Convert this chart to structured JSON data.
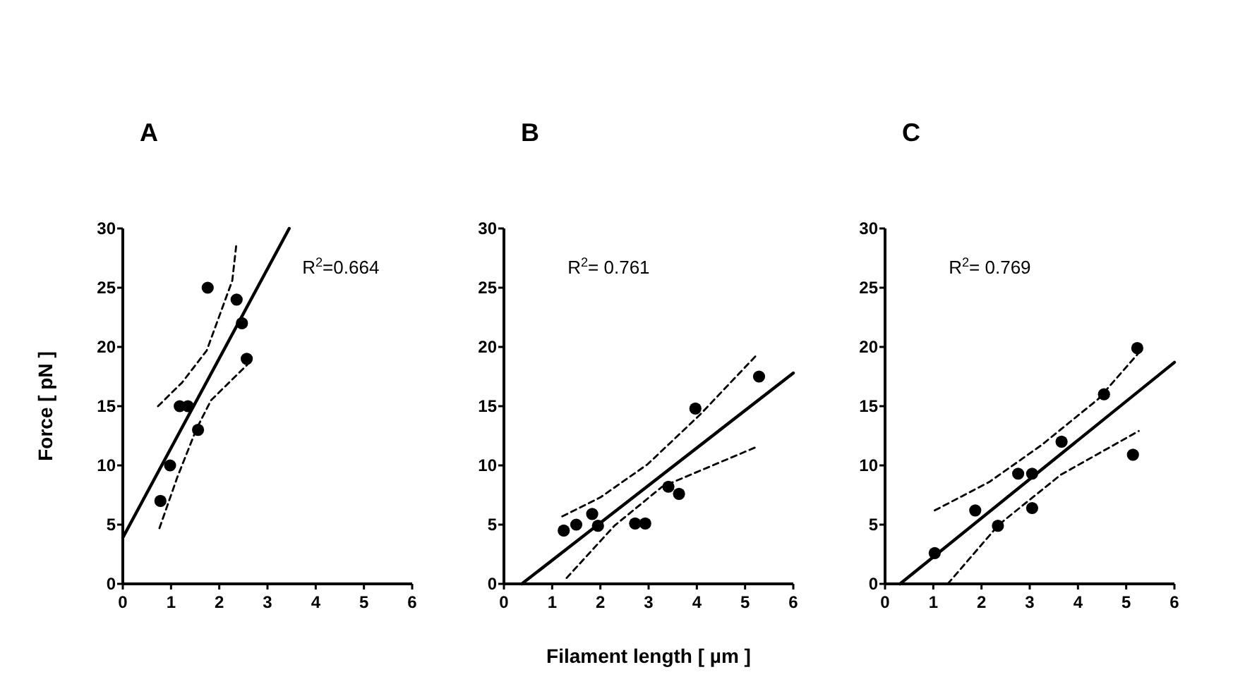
{
  "chart_data": [
    {
      "type": "scatter",
      "title": "A",
      "ylabel": "Force [ pN ]",
      "xlim": [
        0,
        6
      ],
      "ylim": [
        0,
        30
      ],
      "xticks": [
        0,
        1,
        2,
        3,
        4,
        5,
        6
      ],
      "yticks": [
        0,
        5,
        10,
        15,
        20,
        25,
        30
      ],
      "grid": false,
      "marker": "circle",
      "annotations": [
        "R$^{2}$=0.664"
      ],
      "series": [
        {
          "color": "#000000",
          "x": [
            0.78,
            0.98,
            1.18,
            1.35,
            1.56,
            1.76,
            2.36,
            2.47,
            2.57
          ],
          "values": [
            7,
            10,
            15,
            15,
            13,
            25,
            24,
            22,
            19
          ]
        },
        {
          "type": "line",
          "color": "#000000",
          "line_style": "solid",
          "marker": "none",
          "x": [
            0,
            3.45
          ],
          "values": [
            3.9,
            30
          ]
        },
        {
          "type": "line",
          "color": "#000000",
          "line_style": "dashed",
          "marker": "none",
          "x": [
            0.73,
            1.23,
            1.74,
            2.27,
            2.35
          ],
          "values": [
            15,
            17,
            19.7,
            25.6,
            28.5
          ]
        },
        {
          "type": "line",
          "color": "#000000",
          "line_style": "dashed",
          "marker": "none",
          "x": [
            0.76,
            1.13,
            1.53,
            1.83,
            2.58
          ],
          "values": [
            4.7,
            9,
            13.1,
            15.5,
            18.5
          ]
        }
      ]
    },
    {
      "type": "scatter",
      "title": "B",
      "xlabel": "Filament length [ µm ]",
      "xlim": [
        0,
        6
      ],
      "ylim": [
        0,
        30
      ],
      "xticks": [
        0,
        1,
        2,
        3,
        4,
        5,
        6
      ],
      "yticks": [
        0,
        5,
        10,
        15,
        20,
        25,
        30
      ],
      "grid": false,
      "marker": "circle",
      "annotations": [
        "R$^{2}$= 0.761"
      ],
      "series": [
        {
          "color": "#000000",
          "x": [
            1.24,
            1.5,
            1.83,
            1.95,
            2.72,
            2.93,
            3.41,
            3.63,
            3.97,
            5.29
          ],
          "values": [
            4.5,
            5,
            5.9,
            4.9,
            5.1,
            5.1,
            8.2,
            7.6,
            14.8,
            17.5
          ]
        },
        {
          "type": "line",
          "color": "#000000",
          "line_style": "solid",
          "marker": "none",
          "x": [
            0.37,
            6
          ],
          "values": [
            0,
            17.8
          ]
        },
        {
          "type": "line",
          "color": "#000000",
          "line_style": "dashed",
          "marker": "none",
          "x": [
            1.21,
            2,
            2.98,
            4.07,
            5.26
          ],
          "values": [
            5.7,
            7.3,
            10.1,
            14.3,
            19.4
          ]
        },
        {
          "type": "line",
          "color": "#000000",
          "line_style": "dashed",
          "marker": "none",
          "x": [
            1.3,
            2.29,
            3.28,
            5.26
          ],
          "values": [
            0.5,
            4.9,
            8.2,
            11.6
          ]
        }
      ]
    },
    {
      "type": "scatter",
      "title": "C",
      "xlim": [
        0,
        6
      ],
      "ylim": [
        0,
        30
      ],
      "xticks": [
        0,
        1,
        2,
        3,
        4,
        5,
        6
      ],
      "yticks": [
        0,
        5,
        10,
        15,
        20,
        25,
        30
      ],
      "grid": false,
      "marker": "circle",
      "annotations": [
        "R$^{2}$= 0.769"
      ],
      "series": [
        {
          "color": "#000000",
          "x": [
            1.03,
            1.87,
            2.34,
            2.76,
            3.05,
            3.05,
            3.66,
            4.54,
            5.14,
            5.23
          ],
          "values": [
            2.6,
            6.2,
            4.9,
            9.3,
            9.3,
            6.4,
            12,
            16,
            10.9,
            19.9
          ]
        },
        {
          "type": "line",
          "color": "#000000",
          "line_style": "solid",
          "marker": "none",
          "x": [
            0.31,
            6
          ],
          "values": [
            0,
            18.7
          ]
        },
        {
          "type": "line",
          "color": "#000000",
          "line_style": "dashed",
          "marker": "none",
          "x": [
            1.03,
            2.16,
            3.24,
            4.42,
            5.26
          ],
          "values": [
            6.2,
            8.6,
            11.7,
            15.6,
            19.5
          ]
        },
        {
          "type": "line",
          "color": "#000000",
          "line_style": "dashed",
          "marker": "none",
          "x": [
            1.3,
            2.36,
            3.64,
            5.26
          ],
          "values": [
            0,
            5,
            9.2,
            12.9
          ]
        }
      ]
    }
  ]
}
